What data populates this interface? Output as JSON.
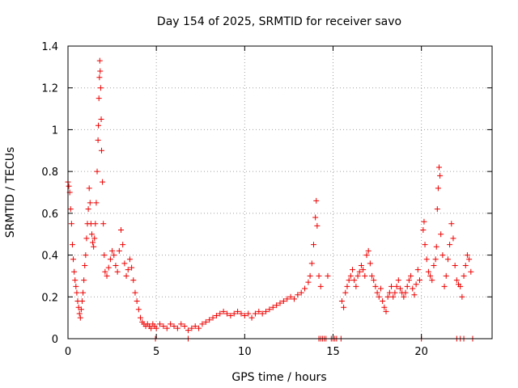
{
  "chart_data": {
    "type": "scatter",
    "title": "Day 154 of 2025, SRMTID for receiver savo",
    "xlabel": "GPS time / hours",
    "ylabel": "SRMTID / TECUs",
    "xlim": [
      0,
      24
    ],
    "ylim": [
      0,
      1.4
    ],
    "xticks": [
      0,
      5,
      10,
      15,
      20
    ],
    "yticks": [
      0,
      0.2,
      0.4,
      0.6,
      0.8,
      1,
      1.2,
      1.4
    ],
    "xtick_labels": [
      "0",
      "5",
      "10",
      "15",
      "20"
    ],
    "ytick_labels": [
      "0",
      "0.2",
      "0.4",
      "0.6",
      "0.8",
      "1",
      "1.2",
      "1.4"
    ],
    "grid": true,
    "marker": "+",
    "color": "#ee0000",
    "series": [
      {
        "name": "SRMTID",
        "points": [
          [
            0.0,
            0.75
          ],
          [
            0.05,
            0.73
          ],
          [
            0.1,
            0.7
          ],
          [
            0.15,
            0.62
          ],
          [
            0.2,
            0.55
          ],
          [
            0.25,
            0.45
          ],
          [
            0.3,
            0.38
          ],
          [
            0.35,
            0.32
          ],
          [
            0.4,
            0.28
          ],
          [
            0.45,
            0.25
          ],
          [
            0.5,
            0.22
          ],
          [
            0.55,
            0.18
          ],
          [
            0.6,
            0.15
          ],
          [
            0.65,
            0.12
          ],
          [
            0.7,
            0.1
          ],
          [
            0.75,
            0.14
          ],
          [
            0.8,
            0.18
          ],
          [
            0.85,
            0.22
          ],
          [
            0.9,
            0.28
          ],
          [
            0.95,
            0.35
          ],
          [
            1.0,
            0.4
          ],
          [
            1.05,
            0.48
          ],
          [
            1.1,
            0.55
          ],
          [
            1.15,
            0.62
          ],
          [
            1.2,
            0.72
          ],
          [
            1.25,
            0.65
          ],
          [
            1.3,
            0.55
          ],
          [
            1.35,
            0.5
          ],
          [
            1.4,
            0.46
          ],
          [
            1.45,
            0.44
          ],
          [
            1.5,
            0.48
          ],
          [
            1.55,
            0.55
          ],
          [
            1.6,
            0.65
          ],
          [
            1.65,
            0.8
          ],
          [
            1.7,
            0.95
          ],
          [
            1.72,
            1.02
          ],
          [
            1.75,
            1.15
          ],
          [
            1.78,
            1.25
          ],
          [
            1.8,
            1.33
          ],
          [
            1.82,
            1.28
          ],
          [
            1.85,
            1.2
          ],
          [
            1.88,
            1.05
          ],
          [
            1.9,
            0.9
          ],
          [
            1.95,
            0.75
          ],
          [
            2.0,
            0.55
          ],
          [
            2.05,
            0.4
          ],
          [
            2.1,
            0.32
          ],
          [
            2.2,
            0.3
          ],
          [
            2.3,
            0.34
          ],
          [
            2.4,
            0.38
          ],
          [
            2.5,
            0.42
          ],
          [
            2.6,
            0.4
          ],
          [
            2.7,
            0.35
          ],
          [
            2.8,
            0.32
          ],
          [
            2.9,
            0.42
          ],
          [
            3.0,
            0.52
          ],
          [
            3.1,
            0.45
          ],
          [
            3.2,
            0.36
          ],
          [
            3.3,
            0.3
          ],
          [
            3.4,
            0.33
          ],
          [
            3.5,
            0.38
          ],
          [
            3.6,
            0.34
          ],
          [
            3.7,
            0.28
          ],
          [
            3.8,
            0.22
          ],
          [
            3.9,
            0.18
          ],
          [
            4.0,
            0.14
          ],
          [
            4.1,
            0.1
          ],
          [
            4.2,
            0.08
          ],
          [
            4.3,
            0.07
          ],
          [
            4.4,
            0.06
          ],
          [
            4.5,
            0.07
          ],
          [
            4.6,
            0.06
          ],
          [
            4.7,
            0.05
          ],
          [
            4.8,
            0.07
          ],
          [
            4.9,
            0.06
          ],
          [
            5.0,
            0.05
          ],
          [
            5.2,
            0.07
          ],
          [
            5.4,
            0.06
          ],
          [
            5.6,
            0.05
          ],
          [
            5.8,
            0.07
          ],
          [
            6.0,
            0.06
          ],
          [
            6.2,
            0.05
          ],
          [
            6.4,
            0.07
          ],
          [
            6.6,
            0.06
          ],
          [
            6.8,
            0.04
          ],
          [
            7.0,
            0.05
          ],
          [
            7.2,
            0.06
          ],
          [
            7.4,
            0.05
          ],
          [
            7.6,
            0.07
          ],
          [
            7.8,
            0.08
          ],
          [
            8.0,
            0.09
          ],
          [
            8.2,
            0.1
          ],
          [
            8.4,
            0.11
          ],
          [
            8.6,
            0.12
          ],
          [
            8.8,
            0.13
          ],
          [
            9.0,
            0.12
          ],
          [
            9.2,
            0.11
          ],
          [
            9.4,
            0.12
          ],
          [
            9.6,
            0.13
          ],
          [
            9.8,
            0.12
          ],
          [
            10.0,
            0.11
          ],
          [
            10.2,
            0.12
          ],
          [
            10.4,
            0.1
          ],
          [
            10.6,
            0.12
          ],
          [
            10.8,
            0.13
          ],
          [
            11.0,
            0.12
          ],
          [
            11.2,
            0.13
          ],
          [
            11.4,
            0.14
          ],
          [
            11.6,
            0.15
          ],
          [
            11.8,
            0.16
          ],
          [
            12.0,
            0.17
          ],
          [
            12.2,
            0.18
          ],
          [
            12.4,
            0.19
          ],
          [
            12.6,
            0.2
          ],
          [
            12.8,
            0.19
          ],
          [
            13.0,
            0.21
          ],
          [
            13.2,
            0.22
          ],
          [
            13.4,
            0.24
          ],
          [
            13.6,
            0.27
          ],
          [
            13.7,
            0.3
          ],
          [
            13.8,
            0.36
          ],
          [
            13.9,
            0.45
          ],
          [
            14.0,
            0.58
          ],
          [
            14.05,
            0.66
          ],
          [
            14.1,
            0.54
          ],
          [
            14.2,
            0.3
          ],
          [
            14.3,
            0.25
          ],
          [
            14.2,
            0.0
          ],
          [
            14.3,
            0.0
          ],
          [
            14.4,
            0.0
          ],
          [
            14.5,
            0.0
          ],
          [
            14.6,
            0.0
          ],
          [
            14.9,
            0.0
          ],
          [
            15.0,
            0.0
          ],
          [
            15.1,
            0.0
          ],
          [
            15.2,
            0.0
          ],
          [
            15.45,
            0.0
          ],
          [
            14.7,
            0.3
          ],
          [
            15.5,
            0.18
          ],
          [
            15.6,
            0.15
          ],
          [
            15.7,
            0.22
          ],
          [
            15.8,
            0.25
          ],
          [
            15.9,
            0.28
          ],
          [
            16.0,
            0.3
          ],
          [
            16.1,
            0.33
          ],
          [
            16.2,
            0.28
          ],
          [
            16.3,
            0.25
          ],
          [
            16.4,
            0.3
          ],
          [
            16.5,
            0.32
          ],
          [
            16.6,
            0.35
          ],
          [
            16.7,
            0.33
          ],
          [
            16.8,
            0.3
          ],
          [
            16.9,
            0.4
          ],
          [
            17.0,
            0.42
          ],
          [
            17.1,
            0.36
          ],
          [
            17.2,
            0.3
          ],
          [
            17.3,
            0.28
          ],
          [
            17.4,
            0.25
          ],
          [
            17.5,
            0.22
          ],
          [
            17.6,
            0.2
          ],
          [
            17.7,
            0.24
          ],
          [
            17.8,
            0.18
          ],
          [
            17.9,
            0.15
          ],
          [
            18.0,
            0.13
          ],
          [
            18.1,
            0.2
          ],
          [
            18.2,
            0.22
          ],
          [
            18.3,
            0.25
          ],
          [
            18.4,
            0.2
          ],
          [
            18.5,
            0.22
          ],
          [
            18.6,
            0.25
          ],
          [
            18.7,
            0.28
          ],
          [
            18.8,
            0.24
          ],
          [
            18.9,
            0.22
          ],
          [
            19.0,
            0.2
          ],
          [
            19.1,
            0.22
          ],
          [
            19.2,
            0.25
          ],
          [
            19.3,
            0.28
          ],
          [
            19.4,
            0.3
          ],
          [
            19.5,
            0.24
          ],
          [
            19.6,
            0.21
          ],
          [
            19.7,
            0.26
          ],
          [
            19.8,
            0.33
          ],
          [
            19.9,
            0.28
          ],
          [
            20.0,
            0.0
          ],
          [
            20.1,
            0.52
          ],
          [
            20.15,
            0.56
          ],
          [
            20.2,
            0.45
          ],
          [
            20.3,
            0.38
          ],
          [
            20.4,
            0.32
          ],
          [
            20.5,
            0.3
          ],
          [
            20.6,
            0.28
          ],
          [
            20.7,
            0.35
          ],
          [
            20.8,
            0.38
          ],
          [
            20.85,
            0.44
          ],
          [
            20.9,
            0.62
          ],
          [
            20.95,
            0.72
          ],
          [
            21.0,
            0.82
          ],
          [
            21.05,
            0.78
          ],
          [
            21.1,
            0.5
          ],
          [
            21.2,
            0.4
          ],
          [
            21.3,
            0.25
          ],
          [
            21.4,
            0.3
          ],
          [
            21.5,
            0.38
          ],
          [
            21.6,
            0.45
          ],
          [
            21.7,
            0.55
          ],
          [
            21.8,
            0.48
          ],
          [
            21.9,
            0.35
          ],
          [
            22.0,
            0.28
          ],
          [
            22.1,
            0.26
          ],
          [
            22.2,
            0.25
          ],
          [
            22.3,
            0.2
          ],
          [
            22.4,
            0.3
          ],
          [
            22.5,
            0.35
          ],
          [
            22.6,
            0.4
          ],
          [
            22.7,
            0.38
          ],
          [
            22.8,
            0.32
          ],
          [
            22.0,
            0.0
          ],
          [
            22.2,
            0.0
          ],
          [
            22.4,
            0.0
          ],
          [
            22.9,
            0.0
          ],
          [
            4.95,
            0.0
          ],
          [
            6.8,
            0.0
          ]
        ]
      }
    ]
  }
}
